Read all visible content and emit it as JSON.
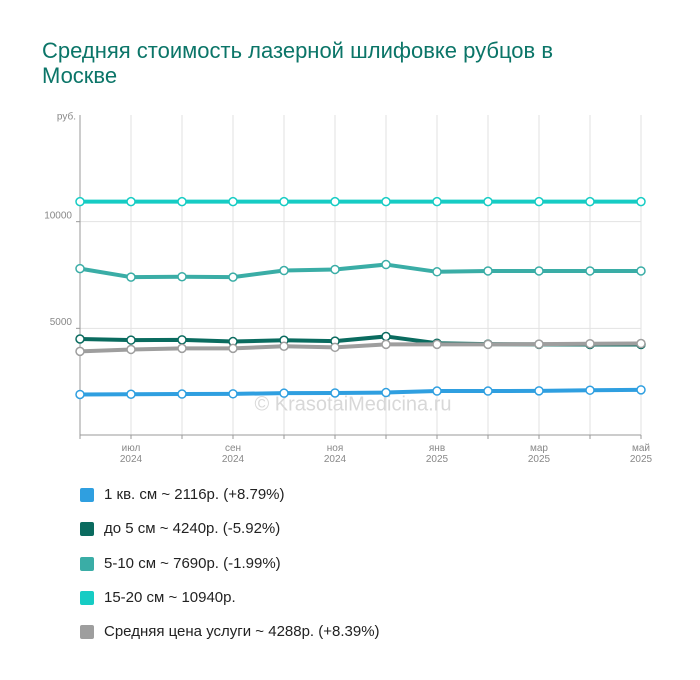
{
  "chart_data": {
    "type": "line",
    "title": "Средняя стоимость лазерной шлифовке рубцов в Москве",
    "y_label": "руб.",
    "watermark": "© KrasotaiMedicina.ru",
    "categories": [
      null,
      "июл 2024",
      null,
      "сен 2024",
      null,
      "ноя 2024",
      null,
      "янв 2025",
      null,
      "мар 2025",
      null,
      "май 2025"
    ],
    "ylim": [
      0,
      15000
    ],
    "yticks": [
      5000,
      10000
    ],
    "series": [
      {
        "name": "1 кв. см ~ 2116р. (+8.79%)",
        "color": "#2f9fe0",
        "values": [
          1900,
          1910,
          1920,
          1930,
          1960,
          1970,
          1990,
          2060,
          2060,
          2070,
          2100,
          2116
        ]
      },
      {
        "name": "до 5 см ~ 4240р. (-5.92%)",
        "color": "#0a6b5f",
        "values": [
          4500,
          4450,
          4460,
          4380,
          4440,
          4400,
          4620,
          4300,
          4260,
          4250,
          4240,
          4240
        ]
      },
      {
        "name": "5-10 см ~ 7690р. (-1.99%)",
        "color": "#3aada6",
        "values": [
          7800,
          7400,
          7420,
          7400,
          7710,
          7760,
          7990,
          7650,
          7690,
          7690,
          7690,
          7690
        ]
      },
      {
        "name": "15-20 см ~ 10940р.",
        "color": "#16ccc4",
        "values": [
          10940,
          10940,
          10940,
          10940,
          10940,
          10940,
          10940,
          10940,
          10940,
          10940,
          10940,
          10940
        ]
      },
      {
        "name": "Средняя цена услуги ~ 4288р. (+8.39%)",
        "color": "#9e9e9e",
        "values": [
          3920,
          4010,
          4060,
          4060,
          4160,
          4110,
          4250,
          4250,
          4250,
          4260,
          4280,
          4288
        ]
      }
    ]
  }
}
